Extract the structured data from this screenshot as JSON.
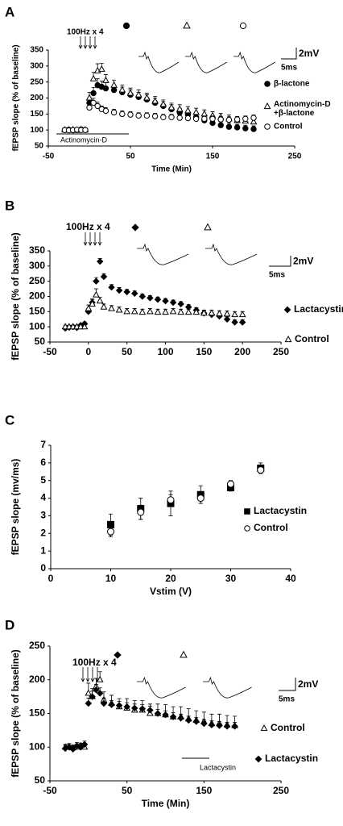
{
  "chart_data": [
    {
      "type": "scatter",
      "panel": "A",
      "x_label": "Time (Min)",
      "y_label": "fEPSP slope (% of baseline)",
      "stimulus_label": "100Hz x 4",
      "drug_label": "Actinomycin-D",
      "scale_labels": {
        "y": "2mV",
        "x": "5ms"
      },
      "xlim": [
        -50,
        250
      ],
      "ylim": [
        50,
        350
      ],
      "xticks": [
        -50,
        50,
        150,
        250
      ],
      "yticks": [
        50,
        100,
        150,
        200,
        250,
        300,
        350
      ],
      "error_bars": "up",
      "x": [
        -30,
        -25,
        -20,
        -15,
        -10,
        -5,
        0,
        5,
        10,
        15,
        20,
        30,
        40,
        50,
        60,
        70,
        80,
        90,
        100,
        110,
        120,
        130,
        140,
        150,
        160,
        170,
        180,
        190,
        200
      ],
      "series": [
        {
          "name": "β-lactone",
          "marker": "circle-filled",
          "color": "#000000",
          "values": [
            100,
            101,
            99,
            100,
            102,
            100,
            185,
            215,
            240,
            235,
            230,
            225,
            218,
            210,
            203,
            195,
            185,
            175,
            165,
            155,
            148,
            140,
            130,
            122,
            115,
            110,
            108,
            105,
            103
          ],
          "errors": [
            4,
            4,
            4,
            4,
            4,
            4,
            15,
            18,
            20,
            18,
            18,
            16,
            16,
            15,
            15,
            15,
            14,
            14,
            14,
            13,
            13,
            12,
            12,
            12,
            11,
            11,
            10,
            10,
            10
          ]
        },
        {
          "name": "Actinomycin-D +β-lactone",
          "marker": "triangle-open",
          "color": "#000000",
          "values": [
            100,
            100,
            101,
            99,
            100,
            100,
            200,
            260,
            285,
            290,
            255,
            240,
            225,
            215,
            210,
            200,
            190,
            180,
            170,
            165,
            160,
            155,
            150,
            145,
            140,
            135,
            130,
            128,
            125
          ],
          "errors": [
            5,
            5,
            5,
            5,
            5,
            5,
            18,
            20,
            22,
            18,
            18,
            16,
            16,
            16,
            15,
            15,
            15,
            14,
            14,
            14,
            13,
            13,
            13,
            12,
            12,
            12,
            12,
            12,
            12
          ]
        },
        {
          "name": "Control",
          "marker": "circle-open",
          "color": "#000000",
          "values": [
            100,
            99,
            100,
            101,
            100,
            100,
            170,
            185,
            175,
            165,
            160,
            155,
            150,
            148,
            145,
            145,
            143,
            140,
            140,
            138,
            137,
            135,
            135,
            135,
            133,
            132,
            133,
            135,
            138
          ],
          "errors": [
            4,
            4,
            4,
            4,
            4,
            4,
            12,
            14,
            12,
            10,
            10,
            10,
            10,
            9,
            9,
            9,
            9,
            9,
            9,
            9,
            9,
            9,
            9,
            9,
            9,
            9,
            9,
            9,
            9
          ]
        }
      ]
    },
    {
      "type": "scatter",
      "panel": "B",
      "y_label": "fEPSP slope (% of baseline)",
      "stimulus_label": "100Hz x 4",
      "scale_labels": {
        "y": "2mV",
        "x": "5ms"
      },
      "xlim": [
        -50,
        250
      ],
      "ylim": [
        50,
        350
      ],
      "xticks": [
        -50,
        0,
        50,
        100,
        150,
        200,
        250
      ],
      "yticks": [
        50,
        100,
        150,
        200,
        250,
        300,
        350
      ],
      "error_bars": "up",
      "x": [
        -30,
        -25,
        -20,
        -15,
        -10,
        -5,
        0,
        5,
        10,
        15,
        20,
        30,
        40,
        50,
        60,
        70,
        80,
        90,
        100,
        110,
        120,
        130,
        140,
        150,
        160,
        170,
        180,
        190,
        200
      ],
      "series": [
        {
          "name": "Lactacystin",
          "marker": "diamond-filled",
          "color": "#000000",
          "values": [
            95,
            98,
            100,
            97,
            105,
            110,
            150,
            180,
            250,
            315,
            265,
            230,
            220,
            215,
            210,
            200,
            195,
            190,
            185,
            180,
            175,
            165,
            155,
            145,
            140,
            135,
            125,
            115,
            115
          ],
          "errors": [
            5,
            5,
            5,
            5,
            5,
            6,
            10,
            12,
            12,
            10,
            10,
            9,
            9,
            8,
            8,
            8,
            8,
            8,
            8,
            8,
            8,
            8,
            8,
            8,
            8,
            8,
            8,
            8,
            8
          ]
        },
        {
          "name": "Control",
          "marker": "triangle-open",
          "color": "#000000",
          "values": [
            100,
            100,
            100,
            100,
            100,
            100,
            160,
            175,
            205,
            185,
            165,
            160,
            155,
            150,
            150,
            148,
            150,
            148,
            148,
            150,
            148,
            148,
            148,
            145,
            145,
            143,
            142,
            140,
            140
          ],
          "errors": [
            5,
            5,
            5,
            5,
            5,
            5,
            12,
            15,
            20,
            12,
            10,
            10,
            10,
            10,
            10,
            10,
            10,
            10,
            10,
            10,
            10,
            10,
            10,
            10,
            10,
            10,
            10,
            10,
            10
          ]
        }
      ]
    },
    {
      "type": "scatter",
      "panel": "C",
      "x_label": "Vstim (V)",
      "y_label": "fEPSP slope (mv/ms)",
      "xlim": [
        0,
        40
      ],
      "ylim": [
        0,
        7
      ],
      "xticks": [
        0,
        10,
        20,
        30,
        40
      ],
      "yticks": [
        0,
        1,
        2,
        3,
        4,
        5,
        6,
        7
      ],
      "error_bars": "both",
      "x": [
        10,
        15,
        20,
        25,
        30,
        35
      ],
      "series": [
        {
          "name": "Lactacystin",
          "marker": "square-filled",
          "color": "#000000",
          "values": [
            2.5,
            3.4,
            3.7,
            4.2,
            4.6,
            5.7
          ],
          "errors": [
            0.6,
            0.6,
            0.7,
            0.5,
            0.2,
            0.3
          ]
        },
        {
          "name": "Control",
          "marker": "circle-open",
          "color": "#000000",
          "values": [
            2.1,
            3.2,
            3.9,
            4.0,
            4.8,
            5.6
          ],
          "errors": [
            0.3,
            0.4,
            0.3,
            0.3,
            0.2,
            0.2
          ]
        }
      ]
    },
    {
      "type": "scatter",
      "panel": "D",
      "x_label": "Time (Min)",
      "y_label": "fEPSP slope (% of baseline)",
      "stimulus_label": "100Hz x 4",
      "drug_label": "Lactacystin",
      "scale_labels": {
        "y": "2mV",
        "x": "5ms"
      },
      "xlim": [
        -50,
        250
      ],
      "ylim": [
        50,
        250
      ],
      "xticks": [
        -50,
        50,
        150,
        250
      ],
      "yticks": [
        50,
        100,
        150,
        200,
        250
      ],
      "error_bars": "up",
      "x": [
        -30,
        -25,
        -20,
        -15,
        -10,
        -5,
        0,
        5,
        10,
        15,
        20,
        30,
        40,
        50,
        60,
        70,
        80,
        90,
        100,
        110,
        120,
        130,
        140,
        150,
        160,
        170,
        180,
        190
      ],
      "series": [
        {
          "name": "Control",
          "marker": "triangle-open",
          "color": "#000000",
          "values": [
            100,
            101,
            99,
            100,
            102,
            100,
            180,
            175,
            190,
            200,
            170,
            165,
            160,
            158,
            155,
            155,
            150,
            150,
            148,
            145,
            145,
            142,
            140,
            138,
            135,
            135,
            133,
            132
          ],
          "errors": [
            4,
            4,
            4,
            4,
            4,
            4,
            15,
            12,
            12,
            12,
            12,
            12,
            12,
            14,
            14,
            14,
            14,
            14,
            15,
            15,
            15,
            15,
            14,
            14,
            14,
            14,
            14,
            14
          ]
        },
        {
          "name": "Lactacystin",
          "marker": "diamond-filled",
          "color": "#000000",
          "values": [
            98,
            100,
            97,
            102,
            100,
            104,
            165,
            175,
            185,
            180,
            165,
            163,
            162,
            160,
            158,
            157,
            155,
            150,
            148,
            145,
            143,
            140,
            138,
            135,
            133,
            132,
            131,
            131
          ],
          "errors": [
            5,
            5,
            5,
            5,
            5,
            5,
            8,
            8,
            8,
            8,
            8,
            6,
            6,
            6,
            6,
            6,
            6,
            6,
            6,
            6,
            6,
            6,
            6,
            6,
            6,
            6,
            6,
            6
          ]
        }
      ]
    }
  ]
}
